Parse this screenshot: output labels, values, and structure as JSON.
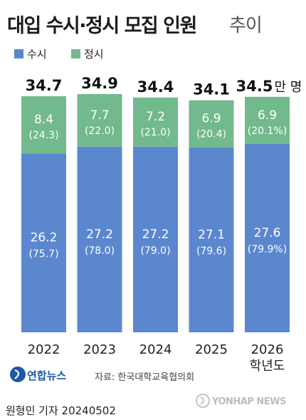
{
  "title": "대입 수시·정시 모집 인원",
  "title_suffix": "추이",
  "legend": {
    "susi_label": "수시",
    "jeongsi_label": "정시"
  },
  "colors": {
    "susi": "#5b87cf",
    "jeongsi": "#72b98d",
    "total_text": "#111111",
    "inner_text": "#ffffff"
  },
  "chart_data": {
    "type": "bar",
    "stacked": true,
    "categories": [
      "2022",
      "2023",
      "2024",
      "2025",
      "2026"
    ],
    "category_suffix_last": "학년도",
    "series": [
      {
        "name": "수시",
        "values": [
          26.2,
          27.2,
          27.2,
          27.1,
          27.6
        ],
        "shares": [
          "(75.7)",
          "(78.0)",
          "(79.0)",
          "(79.6)",
          "(79.9%)"
        ]
      },
      {
        "name": "정시",
        "values": [
          8.4,
          7.7,
          7.2,
          6.9,
          6.9
        ],
        "shares": [
          "(24.3)",
          "(22.0)",
          "(21.0)",
          "(20.4)",
          "(20.1%)"
        ]
      }
    ],
    "totals": [
      34.7,
      34.9,
      34.4,
      34.1,
      34.5
    ],
    "total_unit": "만 명",
    "ylim": [
      0,
      34.9
    ],
    "grid": false,
    "legend_position": "top-left"
  },
  "credits": {
    "logo_text": "연합뉴스",
    "source": "자료: 한국대학교육협의회",
    "reporter": "원형민 기자  20240502",
    "watermark": "YONHAP NEWS"
  }
}
